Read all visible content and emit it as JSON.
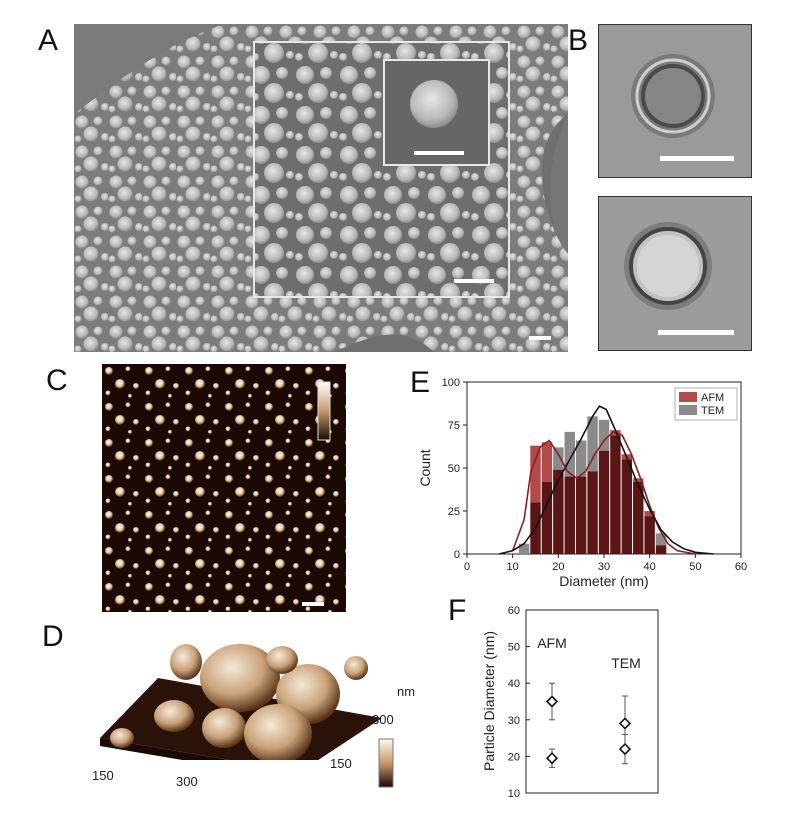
{
  "panels": {
    "a": "A",
    "b": "B",
    "c": "C",
    "d": "D",
    "e": "E",
    "f": "F"
  },
  "panel_d": {
    "axis_unit": "nm",
    "x_ticks": [
      "150",
      "300"
    ],
    "y_ticks": [
      "150",
      "300"
    ]
  },
  "colors": {
    "afm": "#b34a4a",
    "tem": "#8a8a8a",
    "overlap": "#5a1616",
    "afm_curve": "#8b1e1e",
    "tem_curve": "#111111"
  },
  "chart_data": [
    {
      "type": "bar",
      "panel": "E",
      "xlabel": "Diameter (nm)",
      "ylabel": "Count",
      "xlim": [
        0,
        60
      ],
      "ylim": [
        0,
        100
      ],
      "x_ticks": [
        "0",
        "10",
        "20",
        "30",
        "40",
        "50",
        "60"
      ],
      "y_ticks": [
        "0",
        "25",
        "50",
        "75",
        "100"
      ],
      "legend_position": "top-right",
      "bin_width": 2.5,
      "bins": [
        12.5,
        15,
        17.5,
        20,
        22.5,
        25,
        27.5,
        30,
        32.5,
        35,
        37.5,
        40,
        42.5
      ],
      "series": [
        {
          "name": "AFM",
          "values": [
            0,
            63,
            65,
            49,
            45,
            45,
            48,
            60,
            72,
            58,
            44,
            25,
            5
          ]
        },
        {
          "name": "TEM",
          "values": [
            6,
            30,
            42,
            62,
            71,
            66,
            80,
            78,
            69,
            55,
            42,
            22,
            12
          ]
        }
      ],
      "fit_curves": [
        {
          "series": "AFM",
          "points": [
            [
              10,
              2
            ],
            [
              12.5,
              20
            ],
            [
              14,
              48
            ],
            [
              16,
              62
            ],
            [
              18,
              66
            ],
            [
              20,
              58
            ],
            [
              22,
              48
            ],
            [
              24,
              44
            ],
            [
              26,
              48
            ],
            [
              28,
              58
            ],
            [
              30,
              66
            ],
            [
              32,
              71
            ],
            [
              34,
              69
            ],
            [
              36,
              58
            ],
            [
              38,
              44
            ],
            [
              40,
              28
            ],
            [
              42,
              15
            ],
            [
              44,
              6
            ],
            [
              46,
              2
            ],
            [
              50,
              0
            ]
          ]
        },
        {
          "series": "TEM",
          "points": [
            [
              7,
              0
            ],
            [
              10,
              2
            ],
            [
              12.5,
              6
            ],
            [
              15,
              15
            ],
            [
              17.5,
              29
            ],
            [
              20,
              43
            ],
            [
              22.5,
              55
            ],
            [
              25,
              67
            ],
            [
              27.5,
              80
            ],
            [
              29,
              86
            ],
            [
              30.5,
              84
            ],
            [
              32.5,
              72
            ],
            [
              35,
              56
            ],
            [
              37.5,
              40
            ],
            [
              40,
              26
            ],
            [
              42.5,
              14
            ],
            [
              45,
              7
            ],
            [
              47.5,
              3
            ],
            [
              50,
              1
            ],
            [
              54,
              0
            ]
          ]
        }
      ]
    },
    {
      "type": "scatter",
      "panel": "F",
      "ylabel": "Particle Diameter (nm)",
      "ylim": [
        10,
        60
      ],
      "y_ticks": [
        "10",
        "20",
        "30",
        "40",
        "50",
        "60"
      ],
      "groups": [
        "AFM",
        "TEM"
      ],
      "points": [
        {
          "group": "AFM",
          "y": 35,
          "err": 5
        },
        {
          "group": "AFM",
          "y": 19.5,
          "err": 2.5
        },
        {
          "group": "TEM",
          "y": 29,
          "err": 7.5
        },
        {
          "group": "TEM",
          "y": 22,
          "err": 4
        }
      ]
    }
  ]
}
